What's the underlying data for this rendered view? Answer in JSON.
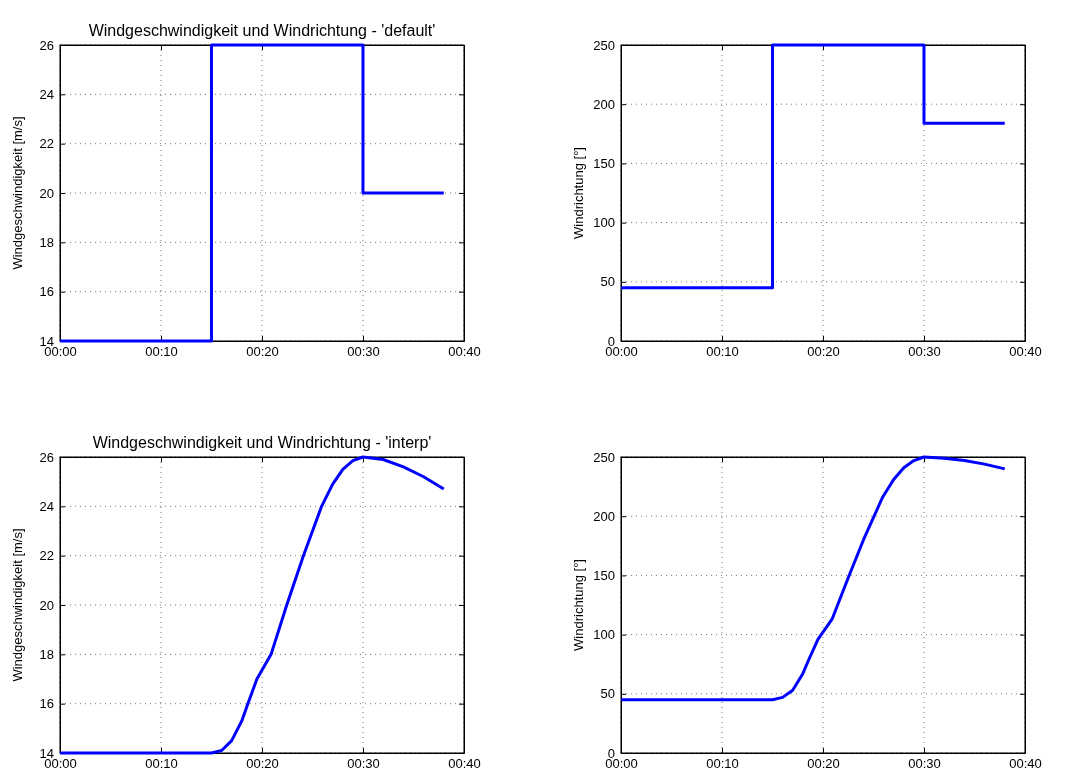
{
  "chart_data": [
    {
      "type": "step",
      "title": "Windgeschwindigkeit und Windrichtung - 'default'",
      "ylabel": "Windgeschwindigkeit [m/s]",
      "x": [
        0,
        0.25,
        0.5,
        0.6333
      ],
      "series": [
        {
          "color": "#0000ff",
          "values": [
            14,
            26,
            20,
            20
          ]
        }
      ],
      "xlim": [
        0,
        0.6667
      ],
      "xticks": [
        {
          "value": 0,
          "label": "00:00"
        },
        {
          "value": 0.1667,
          "label": "00:10"
        },
        {
          "value": 0.3333,
          "label": "00:20"
        },
        {
          "value": 0.5,
          "label": "00:30"
        },
        {
          "value": 0.6667,
          "label": "00:40"
        }
      ],
      "ylim": [
        14,
        26
      ],
      "yticks": [
        14,
        16,
        18,
        20,
        22,
        24,
        26
      ],
      "grid": true,
      "line_style": "solid"
    },
    {
      "type": "step",
      "ylabel": "Windrichtung [°]",
      "x": [
        0,
        0.25,
        0.5,
        0.6333
      ],
      "series": [
        {
          "color": "#0000ff",
          "values": [
            45,
            250,
            184,
            184
          ]
        }
      ],
      "xlim": [
        0,
        0.6667
      ],
      "xticks": [
        {
          "value": 0,
          "label": "00:00"
        },
        {
          "value": 0.1667,
          "label": "00:10"
        },
        {
          "value": 0.3333,
          "label": "00:20"
        },
        {
          "value": 0.5,
          "label": "00:30"
        },
        {
          "value": 0.6667,
          "label": "00:40"
        }
      ],
      "ylim": [
        0,
        250
      ],
      "yticks": [
        0,
        50,
        100,
        150,
        200,
        250
      ],
      "grid": true,
      "line_style": "solid"
    },
    {
      "type": "line",
      "title": "Windgeschwindigkeit und Windrichtung - 'interp'",
      "ylabel": "Windgeschwindigkeit [m/s]",
      "x": [
        0,
        0.25,
        0.2667,
        0.2833,
        0.3,
        0.31,
        0.325,
        0.3483,
        0.3742,
        0.4017,
        0.4317,
        0.45,
        0.4667,
        0.4833,
        0.5,
        0.5333,
        0.5667,
        0.6,
        0.6333
      ],
      "series": [
        {
          "color": "#0000ff",
          "values": [
            14,
            14,
            14.1,
            14.5,
            15.3,
            16,
            17,
            18,
            20,
            22,
            24,
            24.9,
            25.5,
            25.85,
            26,
            25.9,
            25.6,
            25.2,
            24.7
          ]
        }
      ],
      "xlim": [
        0,
        0.6667
      ],
      "xticks": [
        {
          "value": 0,
          "label": "00:00"
        },
        {
          "value": 0.1667,
          "label": "00:10"
        },
        {
          "value": 0.3333,
          "label": "00:20"
        },
        {
          "value": 0.5,
          "label": "00:30"
        },
        {
          "value": 0.6667,
          "label": "00:40"
        }
      ],
      "ylim": [
        14,
        26
      ],
      "yticks": [
        14,
        16,
        18,
        20,
        22,
        24,
        26
      ],
      "grid": true,
      "line_style": "solid"
    },
    {
      "type": "line",
      "ylabel": "Windrichtung [°]",
      "x": [
        0,
        0.25,
        0.2667,
        0.2833,
        0.3,
        0.31,
        0.325,
        0.3483,
        0.3742,
        0.4017,
        0.4317,
        0.45,
        0.4667,
        0.4833,
        0.5,
        0.5333,
        0.5667,
        0.6,
        0.6333
      ],
      "series": [
        {
          "color": "#0000ff",
          "values": [
            45,
            45,
            47,
            53,
            67,
            79,
            96,
            113,
            147,
            182,
            216,
            231,
            241,
            247,
            250,
            249,
            247,
            244,
            240
          ]
        }
      ],
      "xlim": [
        0,
        0.6667
      ],
      "xticks": [
        {
          "value": 0,
          "label": "00:00"
        },
        {
          "value": 0.1667,
          "label": "00:10"
        },
        {
          "value": 0.3333,
          "label": "00:20"
        },
        {
          "value": 0.5,
          "label": "00:30"
        },
        {
          "value": 0.6667,
          "label": "00:40"
        }
      ],
      "ylim": [
        0,
        250
      ],
      "yticks": [
        0,
        50,
        100,
        150,
        200,
        250
      ],
      "grid": true,
      "line_style": "solid"
    }
  ]
}
